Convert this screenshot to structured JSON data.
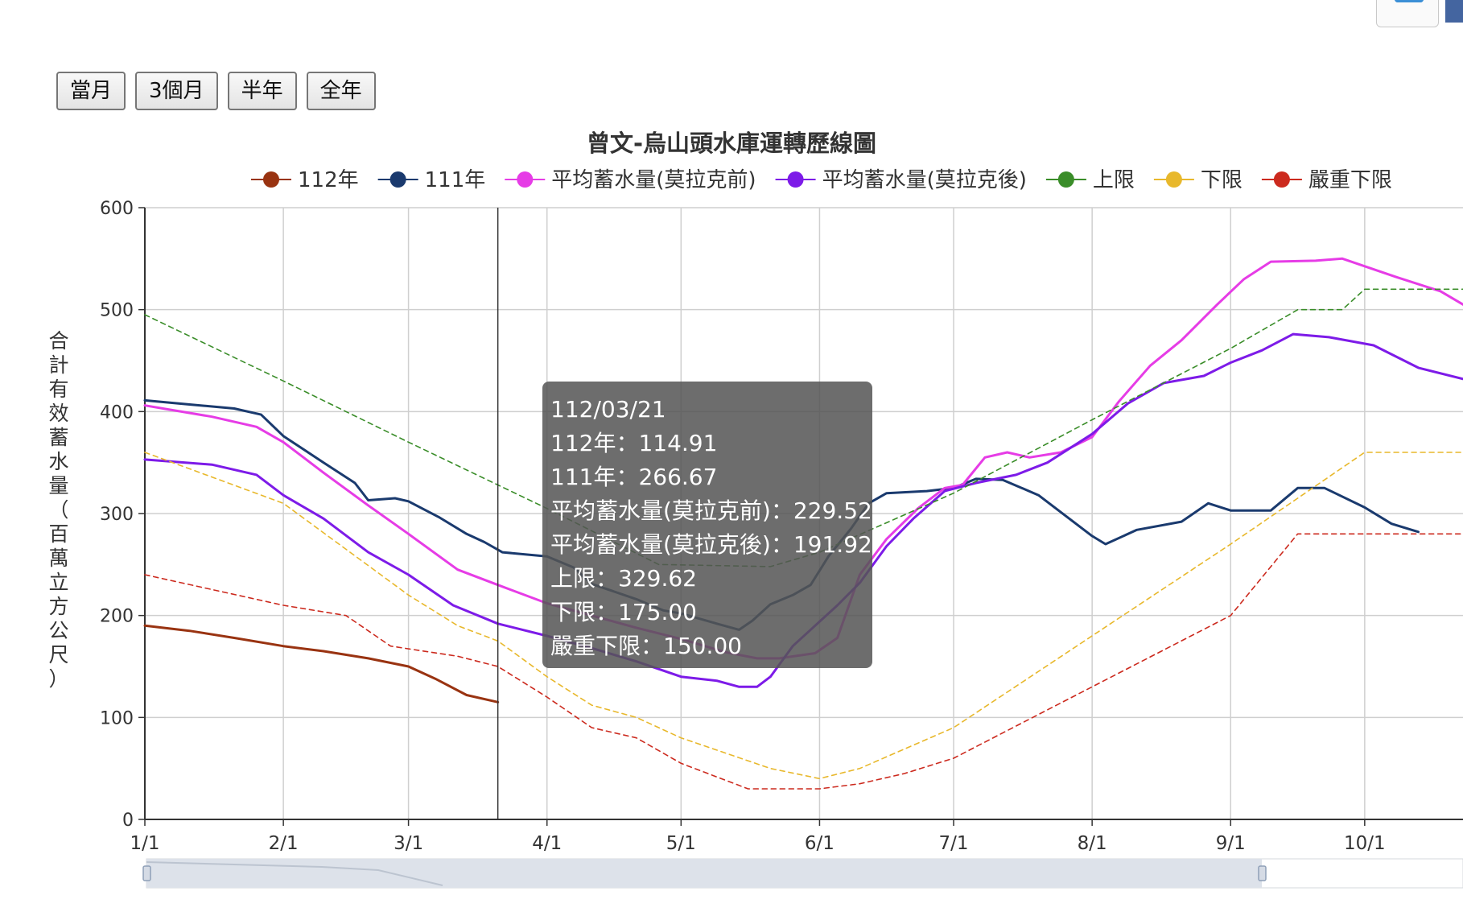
{
  "buttons": [
    "當月",
    "3個月",
    "半年",
    "全年"
  ],
  "tooltip": {
    "date": "112/03/21",
    "rows": [
      "112年：114.91",
      "111年：266.67",
      "平均蓄水量(莫拉克前)：229.52",
      "平均蓄水量(莫拉克後)：191.92",
      "上限：329.62",
      "下限：175.00",
      "嚴重下限：150.00"
    ]
  },
  "chart_data": {
    "type": "line",
    "title": "曾文-烏山頭水庫運轉歷線圖",
    "ylabel": "合計有效蓄水量（百萬立方公尺）",
    "xlabel": "",
    "ylim": [
      0,
      600
    ],
    "yticks": [
      "0",
      "100",
      "200",
      "300",
      "400",
      "500",
      "600"
    ],
    "xticks": [
      {
        "label": "1/1",
        "day": 0
      },
      {
        "label": "2/1",
        "day": 31
      },
      {
        "label": "3/1",
        "day": 59
      },
      {
        "label": "4/1",
        "day": 90
      },
      {
        "label": "5/1",
        "day": 120
      },
      {
        "label": "6/1",
        "day": 151
      },
      {
        "label": "7/1",
        "day": 181
      },
      {
        "label": "8/1",
        "day": 212
      },
      {
        "label": "9/1",
        "day": 243
      },
      {
        "label": "10/1",
        "day": 273
      }
    ],
    "grid": true,
    "legend_position": "top",
    "crosshair_day": 79,
    "series": [
      {
        "name": "112年",
        "color": "#993311",
        "dashed": false,
        "points": [
          [
            0,
            190
          ],
          [
            10,
            185
          ],
          [
            20,
            178
          ],
          [
            31,
            170
          ],
          [
            40,
            165
          ],
          [
            50,
            158
          ],
          [
            59,
            150
          ],
          [
            65,
            138
          ],
          [
            72,
            122
          ],
          [
            79,
            115
          ]
        ]
      },
      {
        "name": "111年",
        "color": "#1a3a6e",
        "dashed": false,
        "points": [
          [
            0,
            411
          ],
          [
            10,
            407
          ],
          [
            20,
            403
          ],
          [
            26,
            397
          ],
          [
            31,
            376
          ],
          [
            40,
            350
          ],
          [
            47,
            330
          ],
          [
            50,
            313
          ],
          [
            56,
            315
          ],
          [
            59,
            312
          ],
          [
            66,
            296
          ],
          [
            72,
            280
          ],
          [
            76,
            272
          ],
          [
            80,
            262
          ],
          [
            90,
            258
          ],
          [
            96,
            247
          ],
          [
            100,
            231
          ],
          [
            110,
            216
          ],
          [
            116,
            205
          ],
          [
            120,
            202
          ],
          [
            128,
            192
          ],
          [
            133,
            186
          ],
          [
            136,
            195
          ],
          [
            140,
            211
          ],
          [
            145,
            220
          ],
          [
            149,
            230
          ],
          [
            153,
            258
          ],
          [
            158,
            285
          ],
          [
            162,
            310
          ],
          [
            166,
            320
          ],
          [
            175,
            322
          ],
          [
            181,
            325
          ],
          [
            186,
            334
          ],
          [
            192,
            333
          ],
          [
            200,
            318
          ],
          [
            212,
            278
          ],
          [
            215,
            270
          ],
          [
            222,
            284
          ],
          [
            232,
            292
          ],
          [
            238,
            310
          ],
          [
            243,
            303
          ],
          [
            252,
            303
          ],
          [
            258,
            325
          ],
          [
            264,
            325
          ],
          [
            273,
            306
          ],
          [
            279,
            290
          ],
          [
            285,
            282
          ]
        ]
      },
      {
        "name": "平均蓄水量(莫拉克前)",
        "color": "#e63ce6",
        "dashed": false,
        "points": [
          [
            0,
            406
          ],
          [
            15,
            395
          ],
          [
            25,
            385
          ],
          [
            31,
            370
          ],
          [
            40,
            340
          ],
          [
            50,
            308
          ],
          [
            59,
            280
          ],
          [
            70,
            245
          ],
          [
            79,
            230
          ],
          [
            90,
            212
          ],
          [
            100,
            200
          ],
          [
            110,
            188
          ],
          [
            120,
            177
          ],
          [
            130,
            164
          ],
          [
            137,
            158
          ],
          [
            142,
            158
          ],
          [
            150,
            163
          ],
          [
            155,
            178
          ],
          [
            160,
            240
          ],
          [
            166,
            275
          ],
          [
            173,
            305
          ],
          [
            179,
            325
          ],
          [
            183,
            328
          ],
          [
            188,
            355
          ],
          [
            193,
            360
          ],
          [
            198,
            355
          ],
          [
            205,
            360
          ],
          [
            212,
            375
          ],
          [
            218,
            410
          ],
          [
            225,
            445
          ],
          [
            232,
            470
          ],
          [
            240,
            505
          ],
          [
            246,
            530
          ],
          [
            252,
            547
          ],
          [
            262,
            548
          ],
          [
            268,
            550
          ],
          [
            280,
            532
          ],
          [
            290,
            518
          ],
          [
            295,
            505
          ]
        ]
      },
      {
        "name": "平均蓄水量(莫拉克後)",
        "color": "#7d1be8",
        "dashed": false,
        "points": [
          [
            0,
            353
          ],
          [
            15,
            348
          ],
          [
            25,
            338
          ],
          [
            31,
            318
          ],
          [
            40,
            295
          ],
          [
            50,
            262
          ],
          [
            59,
            240
          ],
          [
            69,
            210
          ],
          [
            79,
            192
          ],
          [
            90,
            180
          ],
          [
            100,
            168
          ],
          [
            110,
            155
          ],
          [
            120,
            140
          ],
          [
            128,
            136
          ],
          [
            133,
            130
          ],
          [
            137,
            130
          ],
          [
            140,
            140
          ],
          [
            145,
            170
          ],
          [
            150,
            190
          ],
          [
            155,
            210
          ],
          [
            160,
            232
          ],
          [
            166,
            268
          ],
          [
            172,
            295
          ],
          [
            179,
            322
          ],
          [
            186,
            330
          ],
          [
            195,
            338
          ],
          [
            202,
            350
          ],
          [
            212,
            378
          ],
          [
            220,
            408
          ],
          [
            228,
            428
          ],
          [
            237,
            435
          ],
          [
            243,
            448
          ],
          [
            250,
            460
          ],
          [
            257,
            476
          ],
          [
            265,
            473
          ],
          [
            275,
            465
          ],
          [
            285,
            443
          ],
          [
            295,
            432
          ]
        ]
      },
      {
        "name": "上限",
        "color": "#3a8d29",
        "dashed": true,
        "points": [
          [
            0,
            495
          ],
          [
            31,
            430
          ],
          [
            59,
            370
          ],
          [
            90,
            305
          ],
          [
            115,
            250
          ],
          [
            140,
            248
          ],
          [
            151,
            262
          ],
          [
            181,
            320
          ],
          [
            212,
            392
          ],
          [
            243,
            462
          ],
          [
            258,
            500
          ],
          [
            268,
            500
          ],
          [
            273,
            520
          ],
          [
            295,
            520
          ]
        ]
      },
      {
        "name": "下限",
        "color": "#e8b82c",
        "dashed": true,
        "points": [
          [
            0,
            360
          ],
          [
            31,
            310
          ],
          [
            59,
            220
          ],
          [
            70,
            190
          ],
          [
            79,
            175
          ],
          [
            90,
            140
          ],
          [
            100,
            112
          ],
          [
            110,
            100
          ],
          [
            120,
            80
          ],
          [
            140,
            50
          ],
          [
            151,
            40
          ],
          [
            160,
            50
          ],
          [
            181,
            90
          ],
          [
            212,
            180
          ],
          [
            243,
            270
          ],
          [
            273,
            360
          ],
          [
            295,
            360
          ]
        ]
      },
      {
        "name": "嚴重下限",
        "color": "#cc2a1e",
        "dashed": true,
        "points": [
          [
            0,
            240
          ],
          [
            31,
            210
          ],
          [
            45,
            200
          ],
          [
            55,
            170
          ],
          [
            70,
            160
          ],
          [
            79,
            150
          ],
          [
            90,
            120
          ],
          [
            100,
            90
          ],
          [
            110,
            80
          ],
          [
            120,
            55
          ],
          [
            135,
            30
          ],
          [
            151,
            30
          ],
          [
            160,
            35
          ],
          [
            170,
            45
          ],
          [
            181,
            60
          ],
          [
            212,
            130
          ],
          [
            243,
            200
          ],
          [
            258,
            280
          ],
          [
            295,
            280
          ]
        ]
      }
    ]
  }
}
